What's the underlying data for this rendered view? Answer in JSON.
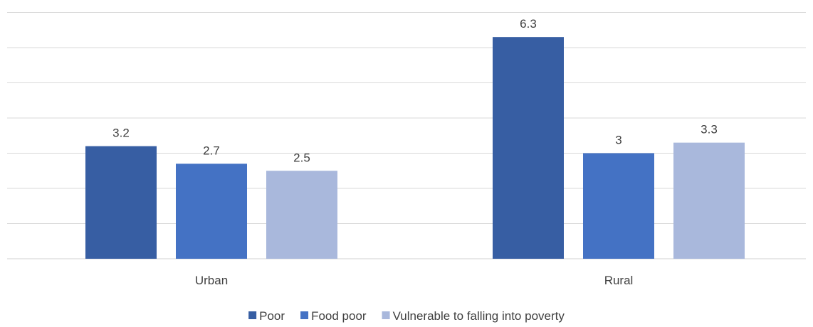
{
  "chart_data": {
    "type": "bar",
    "categories": [
      "Urban",
      "Rural"
    ],
    "series": [
      {
        "name": "Poor",
        "values": [
          3.2,
          6.3
        ],
        "color": "#375ea3"
      },
      {
        "name": "Food poor",
        "values": [
          2.7,
          3
        ],
        "color": "#4472c4"
      },
      {
        "name": "Vulnerable to falling into poverty",
        "values": [
          2.5,
          3.3
        ],
        "color": "#a9b8dc"
      }
    ],
    "value_labels": [
      [
        "3.2",
        "6.3"
      ],
      [
        "2.7",
        "3"
      ],
      [
        "2.5",
        "3.3"
      ]
    ],
    "ylim": [
      0,
      7
    ],
    "grid": true,
    "legend_position": "bottom"
  }
}
